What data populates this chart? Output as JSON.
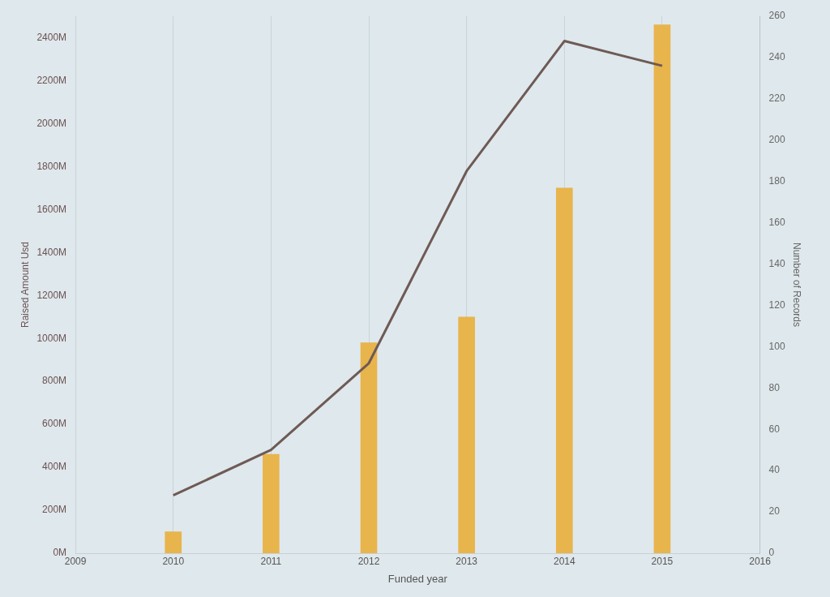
{
  "chart_data": {
    "type": "bar",
    "xlabel": "Funded year",
    "ylabel": "Raised Amount Usd",
    "y2label": "Number of Records",
    "x": [
      2010,
      2011,
      2012,
      2013,
      2014,
      2015
    ],
    "series": [
      {
        "color": "#e8b44c",
        "values": [
          100,
          460,
          980,
          1100,
          1700,
          2460
        ]
      },
      {
        "type": "line",
        "axis": "y2",
        "color": "#6e5a55",
        "values": [
          28,
          50,
          92,
          185,
          248,
          236
        ]
      }
    ],
    "xlim": [
      2009,
      2016
    ],
    "xticks": [
      2009,
      2010,
      2011,
      2012,
      2013,
      2014,
      2015,
      2016
    ],
    "ylim": [
      0,
      2500
    ],
    "yticks": [
      {
        "value": 0,
        "label": "0M"
      },
      {
        "value": 200,
        "label": "200M"
      },
      {
        "value": 400,
        "label": "400M"
      },
      {
        "value": 600,
        "label": "600M"
      },
      {
        "value": 800,
        "label": "800M"
      },
      {
        "value": 1000,
        "label": "1000M"
      },
      {
        "value": 1200,
        "label": "1200M"
      },
      {
        "value": 1400,
        "label": "1400M"
      },
      {
        "value": 1600,
        "label": "1600M"
      },
      {
        "value": 1800,
        "label": "1800M"
      },
      {
        "value": 2000,
        "label": "2000M"
      },
      {
        "value": 2200,
        "label": "2200M"
      },
      {
        "value": 2400,
        "label": "2400M"
      }
    ],
    "y2lim": [
      0,
      260
    ],
    "y2ticks": [
      0,
      20,
      40,
      60,
      80,
      100,
      120,
      140,
      160,
      180,
      200,
      220,
      240,
      260
    ],
    "grid": "x",
    "legend": false,
    "marker": "none",
    "line_style": "solid"
  }
}
